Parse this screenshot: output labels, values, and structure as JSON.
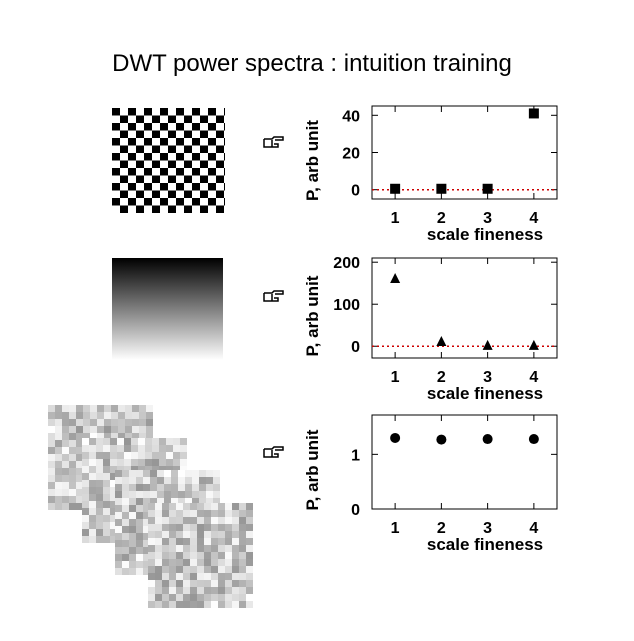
{
  "title": "DWT power spectra : intuition training",
  "chart_data": [
    {
      "type": "scatter",
      "marker": "square",
      "color": "#000000",
      "x": [
        1,
        2,
        3,
        4
      ],
      "values": [
        0.5,
        0.5,
        0.5,
        41
      ],
      "xlim": [
        0.5,
        4.5
      ],
      "xticks": [
        1,
        2,
        3,
        4
      ],
      "ylim": [
        -5,
        45
      ],
      "yticks": [
        0,
        20,
        40
      ],
      "ylabel": "P, arb unit",
      "xlabel": "scale fineness",
      "hline": {
        "value": 0,
        "color": "#cc0000"
      }
    },
    {
      "type": "scatter",
      "marker": "triangle",
      "color": "#000000",
      "x": [
        1,
        2,
        3,
        4
      ],
      "values": [
        160,
        10,
        1,
        1
      ],
      "xlim": [
        0.5,
        4.5
      ],
      "xticks": [
        1,
        2,
        3,
        4
      ],
      "ylim": [
        -28,
        210
      ],
      "yticks": [
        0,
        100,
        200
      ],
      "ylabel": "P, arb unit",
      "xlabel": "scale fineness",
      "hline": {
        "value": 0,
        "color": "#cc0000"
      }
    },
    {
      "type": "scatter",
      "marker": "circle",
      "color": "#000000",
      "x": [
        1,
        2,
        3,
        4
      ],
      "values": [
        1.3,
        1.27,
        1.28,
        1.28
      ],
      "xlim": [
        0.5,
        4.5
      ],
      "xticks": [
        1,
        2,
        3,
        4
      ],
      "ylim": [
        0,
        1.72
      ],
      "yticks": [
        0,
        1
      ],
      "ylabel": "P, arb unit",
      "xlabel": "scale fineness"
    }
  ]
}
